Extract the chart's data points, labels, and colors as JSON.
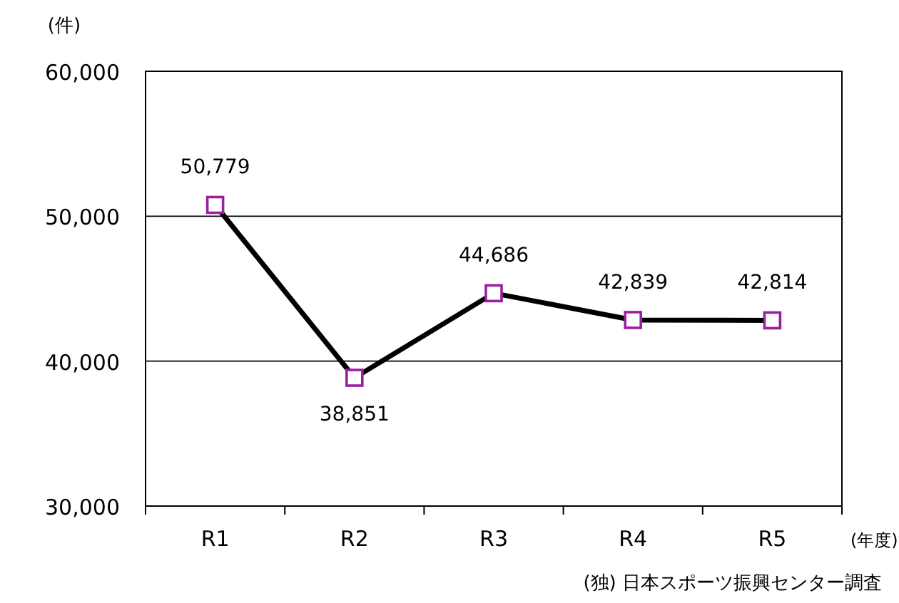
{
  "chart_data": {
    "type": "line",
    "ylabel": "(件)",
    "xlabel": "(年度)",
    "categories": [
      "R1",
      "R2",
      "R3",
      "R4",
      "R5"
    ],
    "series": [
      {
        "color": "#000000",
        "values": [
          50779,
          38851,
          44686,
          42839,
          42814
        ],
        "value_labels": [
          "50,779",
          "38,851",
          "44,686",
          "42,839",
          "42,814"
        ]
      }
    ],
    "ylim": [
      30000,
      60000
    ],
    "yticks": [
      {
        "value": 30000,
        "label": "30,000"
      },
      {
        "value": 40000,
        "label": "40,000"
      },
      {
        "value": 50000,
        "label": "50,000"
      },
      {
        "value": 60000,
        "label": "60,000"
      }
    ],
    "grid": "y",
    "marker": "square",
    "line_style": "solid",
    "annotations": [
      "(独) 日本スポーツ振興センター調査"
    ]
  }
}
